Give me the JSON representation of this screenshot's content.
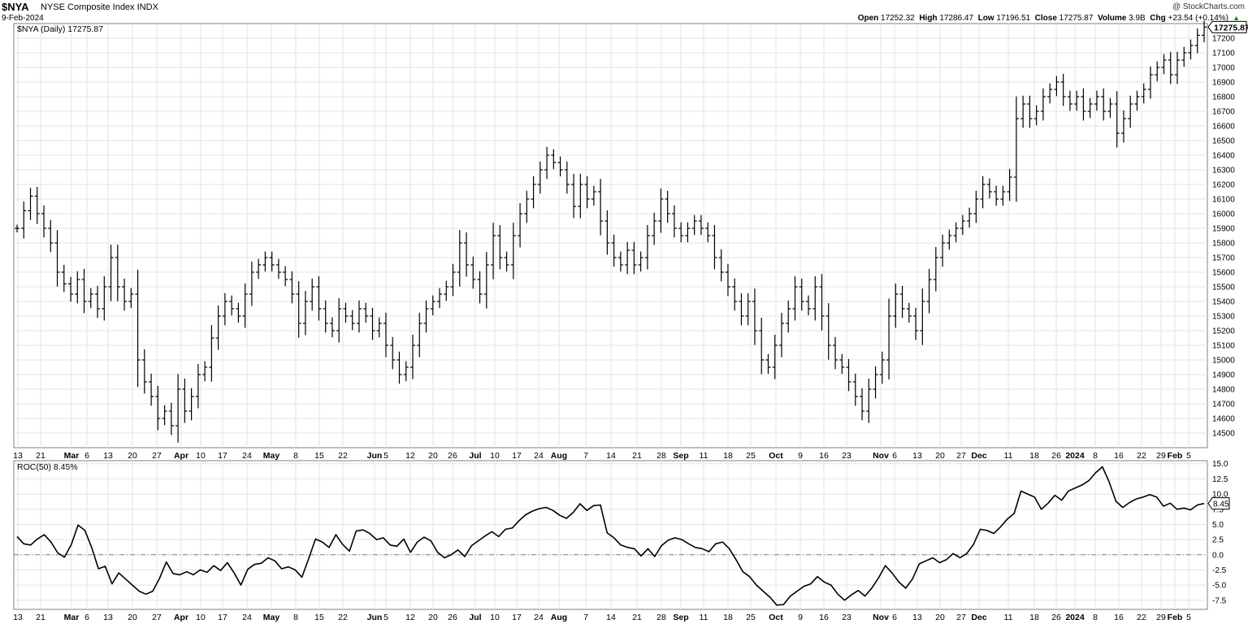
{
  "header": {
    "symbol": "$NYA",
    "name": "NYSE Composite Index",
    "exchange": "INDX",
    "date": "9-Feb-2024",
    "source": "@ StockCharts.com",
    "open_label": "Open",
    "open": "17252.32",
    "high_label": "High",
    "high": "17286.47",
    "low_label": "Low",
    "low": "17196.51",
    "close_label": "Close",
    "close": "17275.87",
    "volume_label": "Volume",
    "volume": "3.9B",
    "chg_label": "Chg",
    "chg": "+23.54 (+0.14%)",
    "chg_arrow": "▲"
  },
  "colors": {
    "bars": "#000000",
    "grid": "#e3e3e3",
    "zero_line": "#808080",
    "positive": "#1a8a1a"
  },
  "chart_data": [
    {
      "type": "line",
      "title": "$NYA (Daily) 17275.87",
      "ylim": [
        14400,
        17300
      ],
      "yticks": [
        14500,
        14600,
        14700,
        14800,
        14900,
        15000,
        15100,
        15200,
        15300,
        15400,
        15500,
        15600,
        15700,
        15800,
        15900,
        16000,
        16100,
        16200,
        16300,
        16400,
        16500,
        16600,
        16700,
        16800,
        16900,
        17000,
        17100,
        17200
      ],
      "last_value_label": "17275.87",
      "x_tick_labels": [
        "13",
        "21",
        "Mar",
        "6",
        "13",
        "20",
        "27",
        "Apr",
        "10",
        "17",
        "24",
        "May",
        "8",
        "15",
        "22",
        "Jun",
        "5",
        "12",
        "20",
        "26",
        "Jul",
        "10",
        "17",
        "24",
        "Aug",
        "7",
        "14",
        "21",
        "28",
        "Sep",
        "11",
        "18",
        "25",
        "Oct",
        "9",
        "16",
        "23",
        "Nov",
        "6",
        "13",
        "20",
        "27",
        "Dec",
        "11",
        "18",
        "26",
        "2024",
        "8",
        "16",
        "22",
        "29",
        "Feb",
        "5"
      ],
      "x_tick_bold": [
        "Mar",
        "Apr",
        "May",
        "Jun",
        "Jul",
        "Aug",
        "Sep",
        "Oct",
        "Nov",
        "Dec",
        "2024",
        "Feb"
      ],
      "series": [
        {
          "values": [
            15900,
            16020,
            16120,
            16000,
            15900,
            15800,
            15600,
            15520,
            15450,
            15550,
            15400,
            15450,
            15350,
            15500,
            15700,
            15500,
            15400,
            15450,
            15000,
            14850,
            14750,
            14600,
            14650,
            14550,
            14800,
            14650,
            14750,
            14900,
            14950,
            15150,
            15300,
            15400,
            15350,
            15300,
            15450,
            15600,
            15650,
            15700,
            15650,
            15600,
            15550,
            15450,
            15250,
            15400,
            15500,
            15350,
            15250,
            15200,
            15350,
            15300,
            15250,
            15350,
            15300,
            15200,
            15250,
            15100,
            15000,
            14900,
            14950,
            15100,
            15250,
            15350,
            15400,
            15450,
            15500,
            15600,
            15800,
            15650,
            15550,
            15450,
            15650,
            15850,
            15700,
            15650,
            15850,
            16000,
            16100,
            16200,
            16300,
            16400,
            16350,
            16300,
            16200,
            16050,
            16200,
            16100,
            16150,
            15950,
            15800,
            15700,
            15650,
            15750,
            15650,
            15700,
            15850,
            15950,
            16100,
            16000,
            15900,
            15850,
            15900,
            15950,
            15900,
            15850,
            15700,
            15600,
            15500,
            15400,
            15300,
            15400,
            15200,
            15000,
            14950,
            15100,
            15250,
            15350,
            15500,
            15400,
            15350,
            15500,
            15300,
            15100,
            15000,
            14950,
            14850,
            14750,
            14650,
            14800,
            14900,
            15000,
            15300,
            15450,
            15350,
            15300,
            15200,
            15400,
            15550,
            15700,
            15800,
            15850,
            15900,
            15950,
            16000,
            16100,
            16200,
            16150,
            16100,
            16150,
            16250,
            16650,
            16750,
            16650,
            16700,
            16800,
            16850,
            16900,
            16800,
            16750,
            16800,
            16700,
            16750,
            16800,
            16700,
            16750,
            16550,
            16650,
            16750,
            16800,
            16850,
            16950,
            17000,
            17050,
            16950,
            17050,
            17100,
            17150,
            17220,
            17276
          ]
        }
      ]
    },
    {
      "type": "line",
      "title": "ROC(50) 8.45%",
      "ylim": [
        -9,
        15.5
      ],
      "yticks": [
        -7.5,
        -5.0,
        -2.5,
        0.0,
        2.5,
        5.0,
        7.5,
        10.0,
        12.5,
        15.0
      ],
      "ytick_labels": [
        "-7.5",
        "-5.0",
        "-2.5",
        "0.0",
        "2.5",
        "5.0",
        "7.5",
        "10.0",
        "12.5",
        "15.0"
      ],
      "last_value_label": "8.45",
      "series": [
        {
          "name": "ROC(50)",
          "values": [
            3.0,
            1.8,
            1.6,
            2.6,
            3.3,
            2.1,
            0.3,
            -0.4,
            1.7,
            4.9,
            4.0,
            1.2,
            -2.3,
            -1.9,
            -4.8,
            -3.0,
            -4.0,
            -5.0,
            -6.0,
            -6.5,
            -6.0,
            -3.9,
            -1.2,
            -3.1,
            -3.3,
            -2.8,
            -3.3,
            -2.5,
            -2.9,
            -1.8,
            -2.6,
            -1.3,
            -3.0,
            -5.0,
            -2.4,
            -1.6,
            -1.4,
            -0.5,
            -1.0,
            -2.3,
            -2.0,
            -2.5,
            -3.7,
            -0.6,
            2.6,
            2.1,
            1.2,
            3.3,
            1.7,
            0.6,
            3.9,
            4.1,
            3.5,
            2.5,
            2.8,
            1.6,
            1.4,
            2.6,
            0.4,
            2.1,
            2.9,
            2.3,
            0.4,
            -0.5,
            0.0,
            0.8,
            -0.3,
            1.5,
            2.3,
            3.1,
            3.8,
            3.0,
            4.2,
            4.4,
            5.6,
            6.6,
            7.2,
            7.6,
            7.8,
            7.3,
            6.5,
            6.0,
            7.0,
            8.4,
            7.3,
            8.1,
            8.2,
            3.6,
            2.8,
            1.6,
            1.2,
            1.0,
            -0.2,
            1.0,
            -0.3,
            1.5,
            2.4,
            2.8,
            2.5,
            1.8,
            1.2,
            1.0,
            0.5,
            1.8,
            2.1,
            1.0,
            -0.8,
            -2.8,
            -3.6,
            -5.0,
            -6.0,
            -7.0,
            -8.3,
            -8.2,
            -6.8,
            -6.0,
            -5.2,
            -4.8,
            -3.6,
            -4.5,
            -5.0,
            -6.5,
            -7.5,
            -6.6,
            -5.9,
            -6.8,
            -5.5,
            -3.8,
            -1.8,
            -3.0,
            -4.5,
            -5.5,
            -4.0,
            -1.5,
            -1.0,
            -0.5,
            -1.3,
            -0.8,
            0.2,
            -0.5,
            0.2,
            1.7,
            4.2,
            4.0,
            3.5,
            4.6,
            5.9,
            6.8,
            10.5,
            10.0,
            9.5,
            7.5,
            8.5,
            9.8,
            9.0,
            10.5,
            11.0,
            11.5,
            12.2,
            13.5,
            14.5,
            12.0,
            8.8,
            7.8,
            8.6,
            9.2,
            9.5,
            9.9,
            9.5,
            8.0,
            8.5,
            7.5,
            7.7,
            7.4,
            8.2,
            8.45
          ]
        }
      ]
    }
  ]
}
